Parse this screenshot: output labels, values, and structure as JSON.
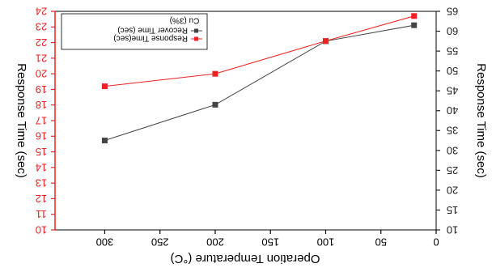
{
  "chart_data": {
    "type": "line",
    "mirrored": true,
    "xlabel": "Operation Temperature (°C)",
    "x_ticks": [
      "0",
      "50",
      "100",
      "150",
      "200",
      "250",
      "300"
    ],
    "xlim": [
      0,
      345
    ],
    "left_axis": {
      "label": "Response Time (sec)",
      "ylim": [
        10,
        24
      ],
      "ticks": [
        "10",
        "11",
        "12",
        "13",
        "14",
        "15",
        "16",
        "17",
        "18",
        "19",
        "20",
        "21",
        "22",
        "23",
        "24"
      ],
      "color": "#ee2222"
    },
    "right_axis": {
      "label": "Response Time (sec)",
      "ylim": [
        10,
        65
      ],
      "ticks": [
        "10",
        "15",
        "20",
        "25",
        "30",
        "35",
        "40",
        "45",
        "50",
        "55",
        "60",
        "65"
      ],
      "color": "#222222"
    },
    "legend": {
      "title": "Cu (3%)",
      "position": "top-right"
    },
    "series": [
      {
        "name": "Recover Time (sec)",
        "axis": "right",
        "color": "#444444",
        "x": [
          20,
          100,
          200,
          300
        ],
        "y": [
          61.5,
          57.5,
          41.5,
          32.5
        ]
      },
      {
        "name": "Response Time(sec)",
        "axis": "left",
        "color": "#ee2222",
        "x": [
          20,
          100,
          200,
          300
        ],
        "y": [
          23.7,
          22.1,
          20.0,
          19.2
        ]
      }
    ]
  }
}
